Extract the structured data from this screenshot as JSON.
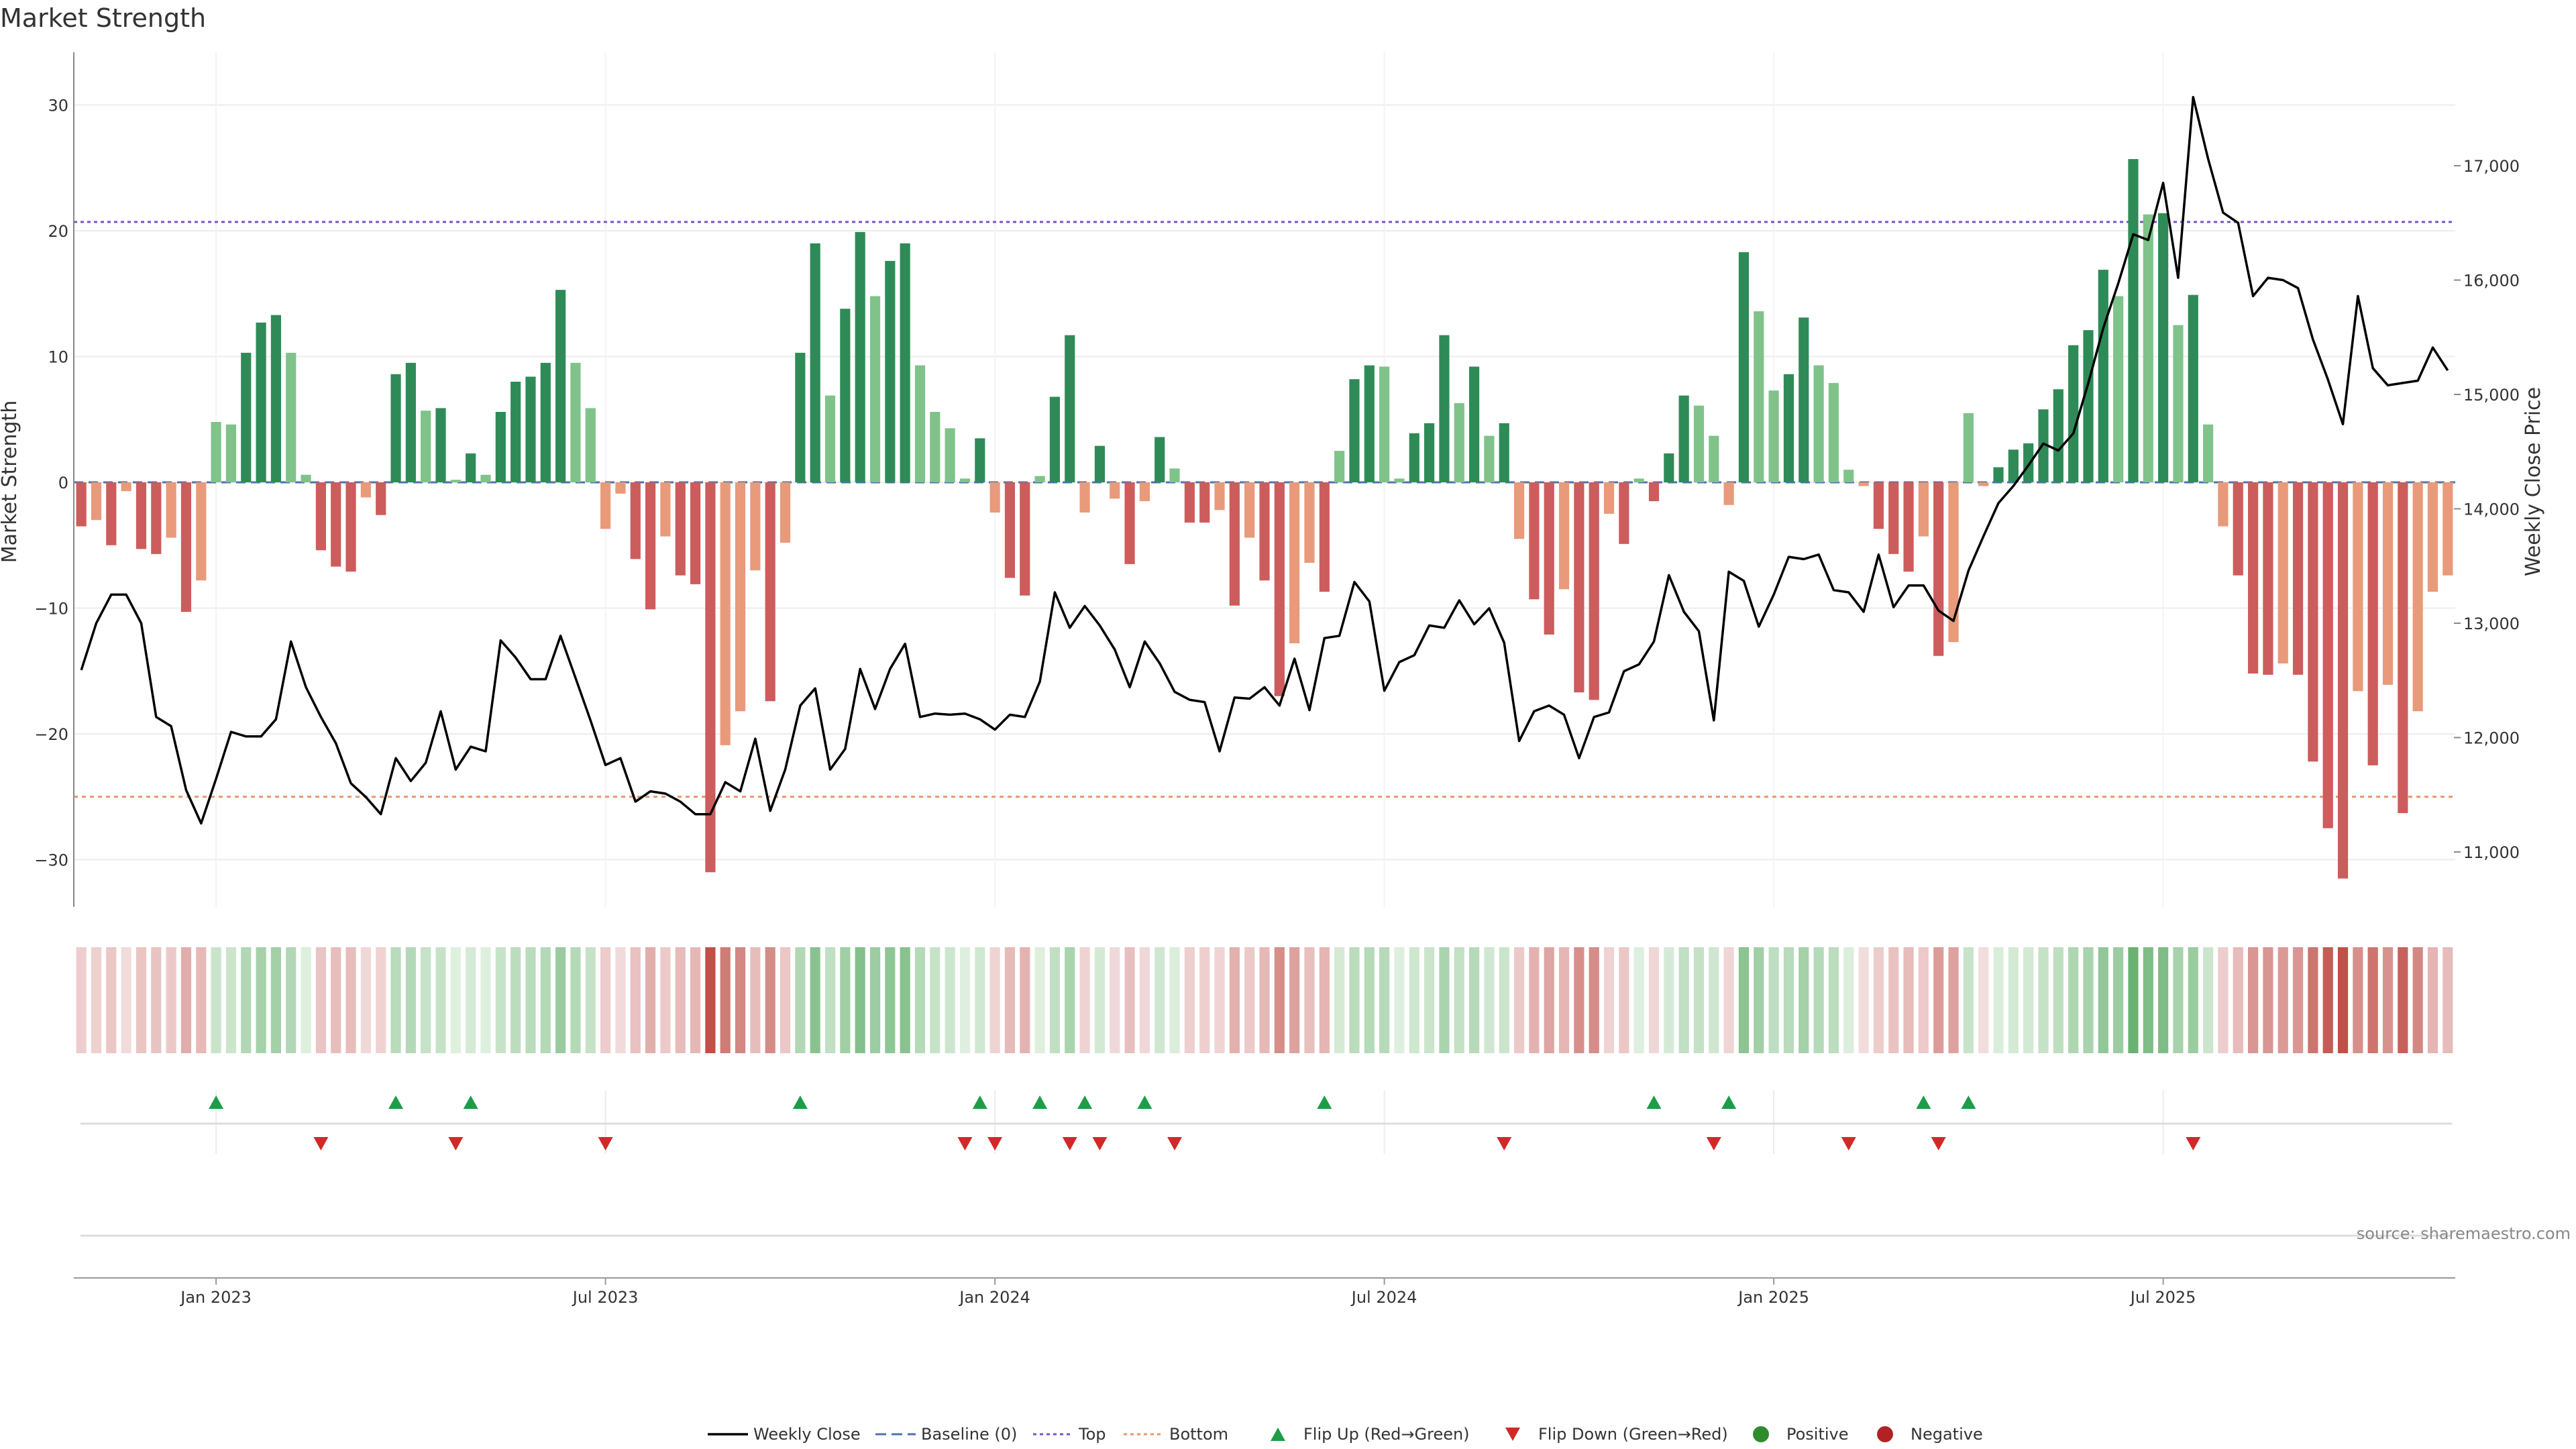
{
  "title": "Market Strength",
  "source": "source: sharemaestro.com",
  "chart_data": {
    "type": "bar",
    "title": "Market Strength",
    "ylabel": "Market Strength",
    "y2label": "Weekly Close Price",
    "ylim": [
      -34,
      34
    ],
    "y2lim": [
      10500,
      17700
    ],
    "yticks": [
      30,
      20,
      10,
      0,
      -10,
      -20,
      -30
    ],
    "yticklabels": [
      "30",
      "20",
      "10",
      "0",
      "−10",
      "−20",
      "−30"
    ],
    "y2ticks": [
      17000,
      16000,
      15000,
      14000,
      13000,
      12000,
      11000
    ],
    "y2ticklabels": [
      "17,000",
      "16,000",
      "15,000",
      "14,000",
      "13,000",
      "12,000",
      "11,000"
    ],
    "top_line": 20.7,
    "bottom_line": -25,
    "xticks": [
      {
        "week": 9,
        "label": "Jan 2023"
      },
      {
        "week": 35,
        "label": "Jul 2023"
      },
      {
        "week": 61,
        "label": "Jan 2024"
      },
      {
        "week": 87,
        "label": "Jul 2024"
      },
      {
        "week": 113,
        "label": "Jan 2025"
      },
      {
        "week": 139,
        "label": "Jul 2025"
      }
    ],
    "strength": [
      -3.5,
      -3,
      -5,
      -0.7,
      -5.3,
      -5.7,
      -4.4,
      -10.3,
      -7.8,
      4.8,
      4.6,
      10.3,
      12.7,
      13.3,
      10.3,
      0.6,
      -5.4,
      -6.7,
      -7.1,
      -1.2,
      -2.6,
      8.6,
      9.5,
      5.7,
      5.9,
      0.2,
      2.3,
      0.6,
      5.6,
      8,
      8.4,
      9.5,
      15.3,
      9.5,
      5.9,
      -3.7,
      -0.9,
      -6.1,
      -10.1,
      -4.3,
      -7.4,
      -8.1,
      -31,
      -20.9,
      -18.2,
      -7,
      -17.4,
      -4.8,
      10.3,
      19,
      6.9,
      13.8,
      19.9,
      14.8,
      17.6,
      19,
      9.3,
      5.6,
      4.3,
      0.3,
      3.5,
      -2.4,
      -7.6,
      -9,
      0.5,
      6.8,
      11.7,
      -2.4,
      2.9,
      -1.3,
      -6.5,
      -1.5,
      3.6,
      1.1,
      -3.2,
      -3.2,
      -2.2,
      -9.8,
      -4.4,
      -7.8,
      -17,
      -12.8,
      -6.4,
      -8.7,
      2.5,
      8.2,
      9.3,
      9.2,
      0.3,
      3.9,
      4.7,
      11.7,
      6.3,
      9.2,
      3.7,
      4.7,
      -4.5,
      -9.3,
      -12.1,
      -8.5,
      -16.7,
      -17.3,
      -2.5,
      -4.9,
      0.3,
      -1.5,
      2.3,
      6.9,
      6.1,
      3.7,
      -1.8,
      18.3,
      13.6,
      7.3,
      8.6,
      13.1,
      9.3,
      7.9,
      1,
      -0.3,
      -3.7,
      -5.7,
      -7.1,
      -4.3,
      -13.8,
      -12.7,
      5.5,
      -0.3,
      1.2,
      2.6,
      3.1,
      5.8,
      7.4,
      10.9,
      12.1,
      16.9,
      14.8,
      25.7,
      21.3,
      21.4,
      12.5,
      14.9,
      4.6,
      -3.5,
      -7.4,
      -15.2,
      -15.3,
      -14.4,
      -15.3,
      -22.2,
      -27.5,
      -31.5,
      -16.6,
      -22.5,
      -16.1,
      -26.3,
      -18.2,
      -8.7,
      -7.4
    ],
    "close": [
      12590,
      13000,
      13250,
      13250,
      13000,
      12180,
      12100,
      11540,
      11250,
      11640,
      12050,
      12010,
      12010,
      12160,
      12840,
      12440,
      12180,
      11950,
      11600,
      11480,
      11330,
      11820,
      11620,
      11780,
      12230,
      11720,
      11920,
      11880,
      12850,
      12700,
      12510,
      12510,
      12890,
      12520,
      12150,
      11760,
      11820,
      11440,
      11530,
      11510,
      11440,
      11330,
      11330,
      11610,
      11530,
      11990,
      11360,
      11720,
      12280,
      12430,
      11720,
      11900,
      12600,
      12250,
      12600,
      12820,
      12180,
      12210,
      12200,
      12210,
      12160,
      12070,
      12200,
      12180,
      12490,
      13270,
      12960,
      13150,
      12980,
      12770,
      12440,
      12840,
      12650,
      12400,
      12330,
      12310,
      11880,
      12350,
      12340,
      12440,
      12280,
      12690,
      12240,
      12870,
      12890,
      13360,
      13190,
      12410,
      12660,
      12720,
      12980,
      12960,
      13200,
      12990,
      13130,
      12830,
      11970,
      12230,
      12280,
      12200,
      11820,
      12180,
      12220,
      12580,
      12640,
      12840,
      13420,
      13100,
      12930,
      12150,
      13450,
      13370,
      12970,
      13250,
      13580,
      13560,
      13600,
      13290,
      13270,
      13100,
      13600,
      13140,
      13330,
      13330,
      13110,
      13020,
      13460,
      13760,
      14050,
      14200,
      14380,
      14570,
      14510,
      14660,
      15100,
      15580,
      15970,
      16400,
      16350,
      16850,
      16020,
      17600,
      17060,
      16590,
      16500,
      15860,
      16020,
      16000,
      15930,
      15480,
      15130,
      14740,
      15860,
      15230,
      15080,
      15100,
      15120,
      15410,
      15210
    ],
    "flip_up_weeks": [
      9,
      21,
      26,
      48,
      60,
      64,
      67,
      71,
      83,
      105,
      110,
      123,
      126
    ],
    "flip_down_weeks": [
      16,
      25,
      35,
      59,
      61,
      66,
      68,
      73,
      95,
      109,
      118,
      124,
      141
    ],
    "legend": [
      {
        "key": "weekly-close",
        "label": "Weekly Close",
        "color": "#000000"
      },
      {
        "key": "baseline",
        "label": "Baseline (0)",
        "color": "#4c72b0"
      },
      {
        "key": "top",
        "label": "Top",
        "color": "#7b52c7"
      },
      {
        "key": "bottom",
        "label": "Bottom",
        "color": "#e8956a"
      },
      {
        "key": "flip-up",
        "label": "Flip Up (Red→Green)",
        "color": "#1e9c48"
      },
      {
        "key": "flip-down",
        "label": "Flip Down (Green→Red)",
        "color": "#cf2a2a"
      },
      {
        "key": "positive",
        "label": "Positive",
        "color": "#2e8b2e"
      },
      {
        "key": "negative",
        "label": "Negative",
        "color": "#b22222"
      }
    ]
  }
}
